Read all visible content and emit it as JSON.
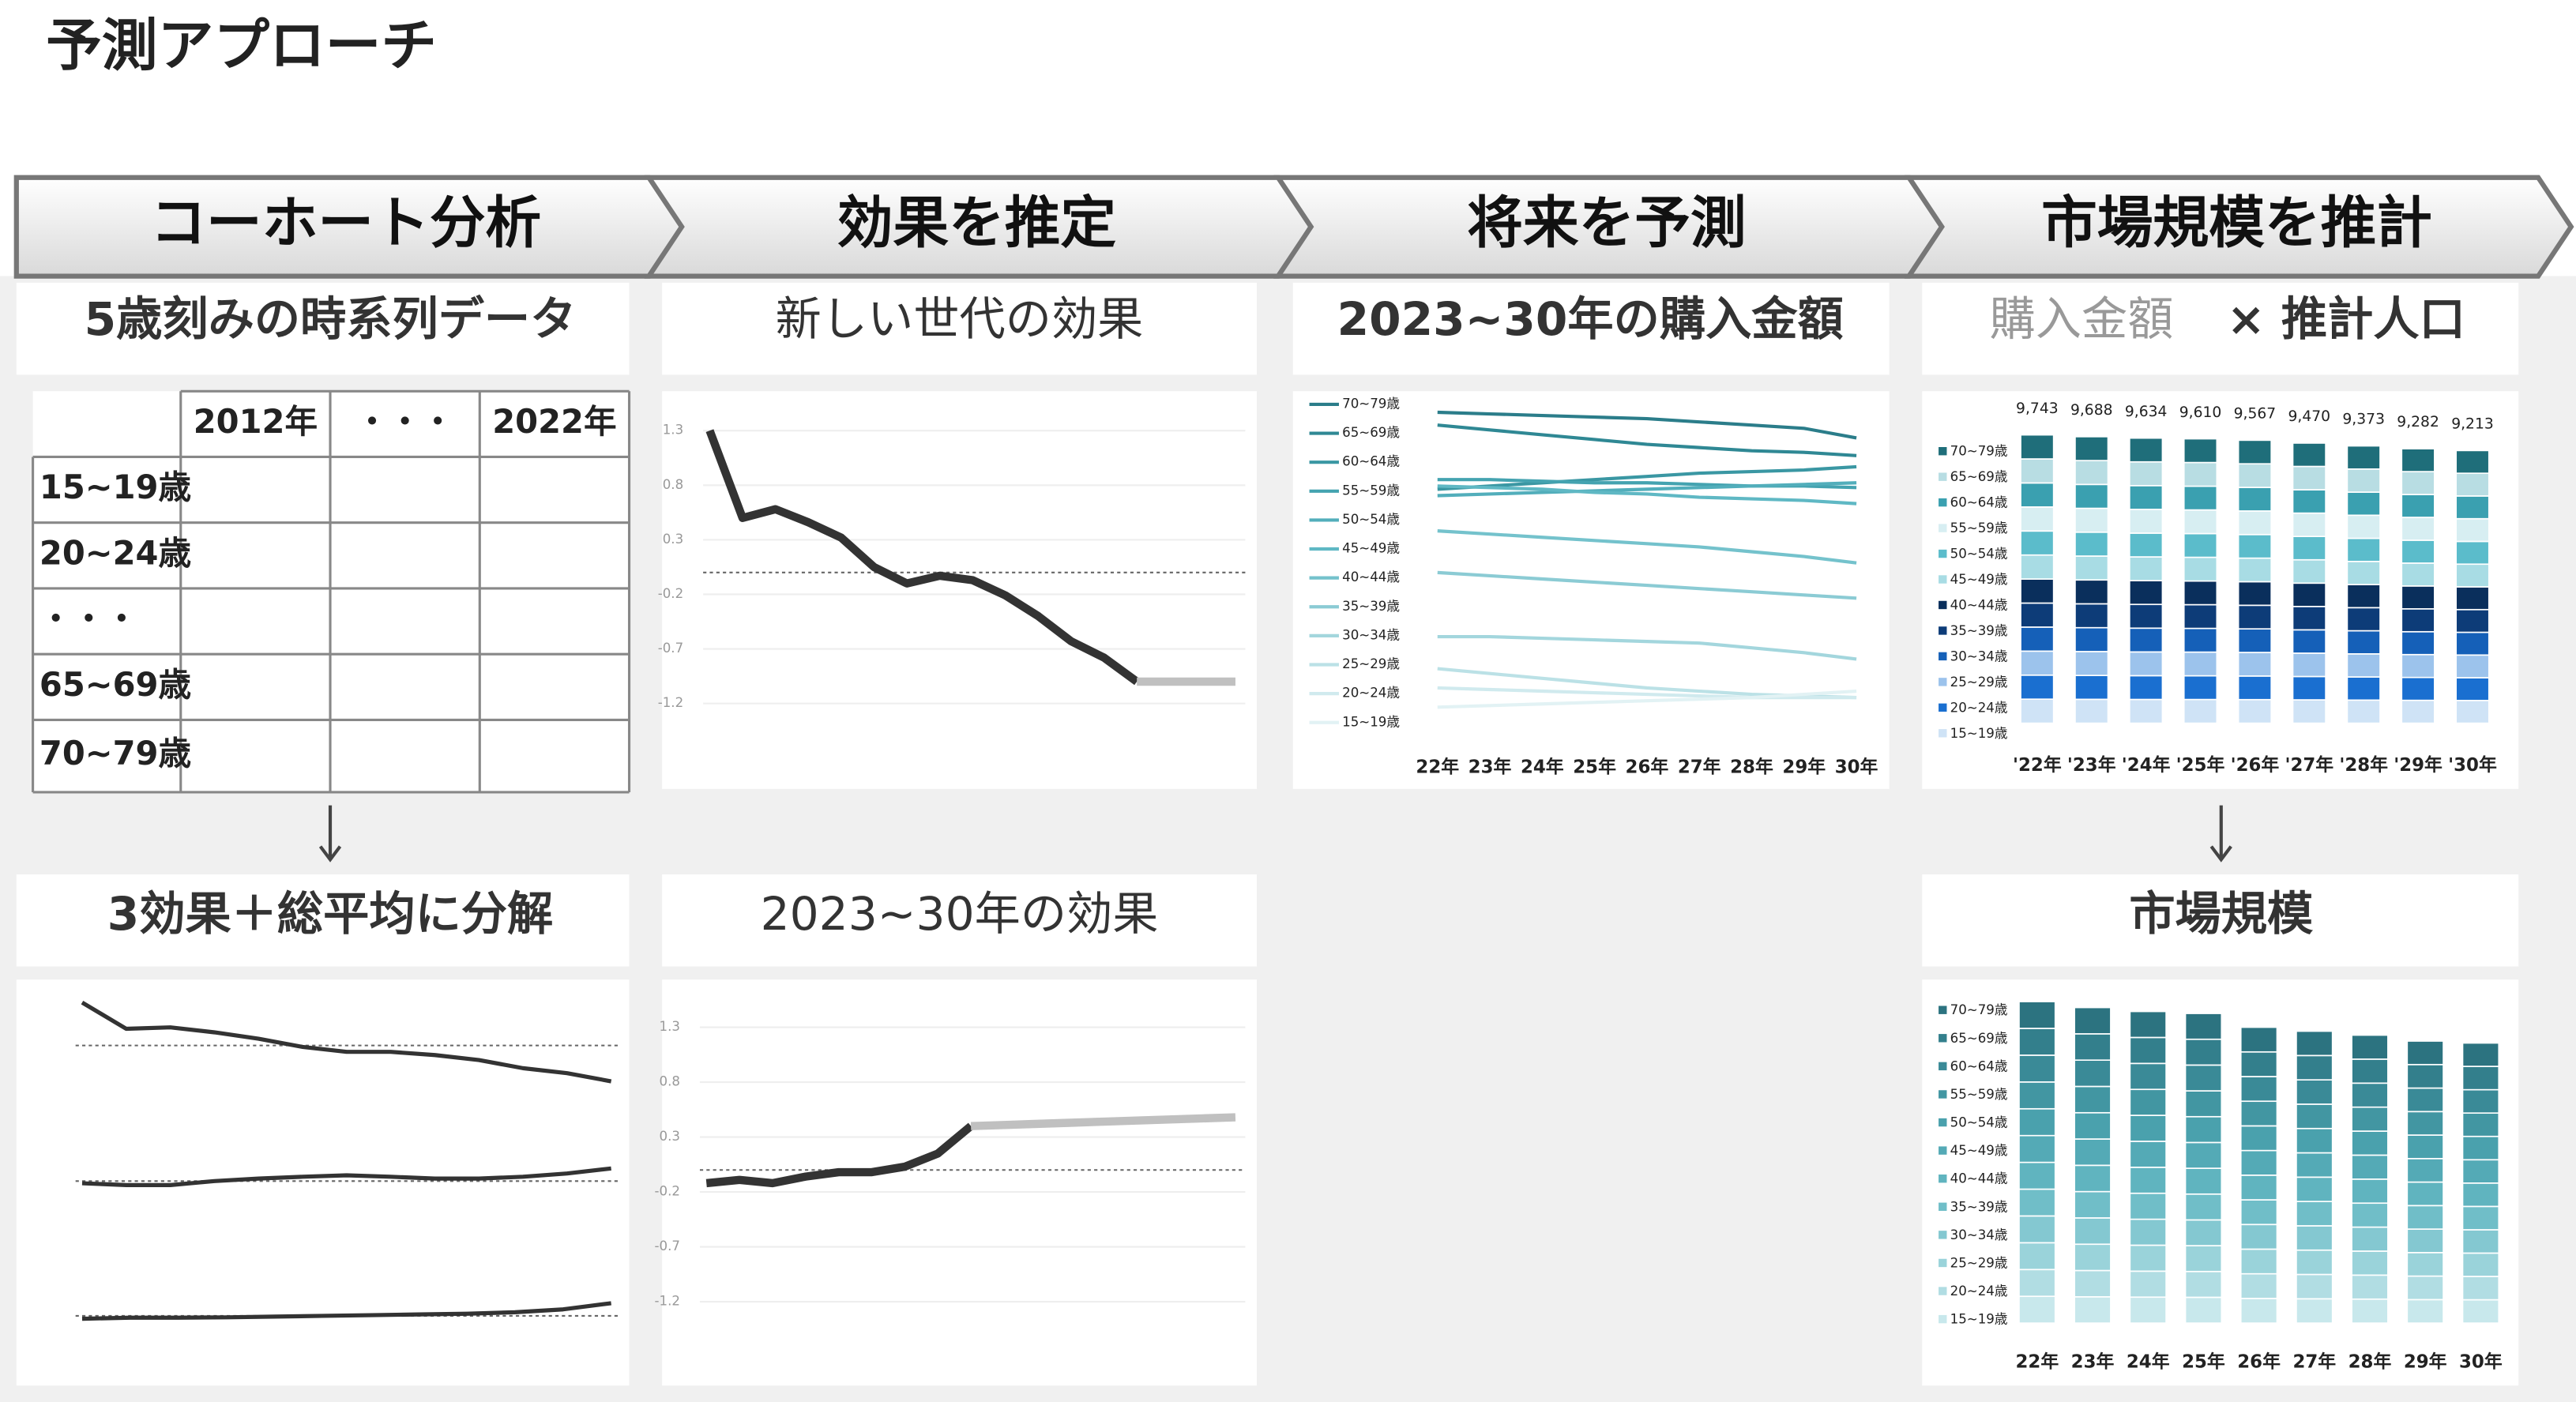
{
  "header": {
    "title": "予測アプローチ"
  },
  "steps": [
    "コーホート分析",
    "効果を推定",
    "将来を予測",
    "市場規模を推計"
  ],
  "subtitles": {
    "time_series": "5歳刻みの時系列データ",
    "new_generation": "新しい世代の効果",
    "purchase_amount": "2023~30年の購入金額",
    "market_calc_a": "購入金額",
    "market_calc_b": "× 推計人口",
    "decomposition": "3効果＋総平均に分解",
    "future_effect": "2023~30年の効果",
    "market_size": "市場規模"
  },
  "table": {
    "header": [
      "2012年",
      "・・・",
      "2022年"
    ],
    "rows": [
      "15~19歳",
      "20~24歳",
      "・・・",
      "65~69歳",
      "70~79歳"
    ]
  },
  "chart_data": [
    {
      "type": "line",
      "ylim": [
        -1.2,
        1.3
      ],
      "yticks": [
        1.3,
        0.8,
        0.3,
        -0.2,
        -0.7,
        -1.2
      ],
      "grid": true,
      "reference_line": 0,
      "series": [
        {
          "color": "#333333",
          "values": [
            1.3,
            0.5,
            0.58,
            0.46,
            0.32,
            0.05,
            -0.1,
            -0.03,
            -0.07,
            -0.21,
            -0.4,
            -0.63,
            -0.78,
            -1.0,
            null,
            null,
            null
          ]
        },
        {
          "color": "#c0c0c0",
          "values": [
            null,
            null,
            null,
            null,
            null,
            null,
            null,
            null,
            null,
            null,
            null,
            null,
            null,
            -1.0,
            -1.0,
            -1.0,
            -1.0
          ]
        }
      ]
    },
    {
      "type": "multi-line",
      "ylim": [
        0,
        100
      ],
      "categories": [
        "22年",
        "23年",
        "24年",
        "25年",
        "26年",
        "27年",
        "28年",
        "29年",
        "30年"
      ],
      "series": [
        {
          "name": "70~79歳",
          "color": "#2b7d8a",
          "values": [
            97,
            96.5,
            96,
            95.5,
            95,
            94,
            93,
            92,
            89
          ]
        },
        {
          "name": "65~69歳",
          "color": "#2f8894",
          "values": [
            93,
            91.5,
            90,
            88.5,
            87,
            86,
            85,
            84.5,
            83.5
          ]
        },
        {
          "name": "60~64歳",
          "color": "#3a97a3",
          "values": [
            73,
            74,
            75,
            76,
            77,
            78,
            78.5,
            79,
            80
          ]
        },
        {
          "name": "55~59歳",
          "color": "#44a3b0",
          "values": [
            76,
            76,
            75.5,
            75,
            75,
            74.5,
            74,
            74,
            73.5
          ]
        },
        {
          "name": "50~54歳",
          "color": "#52aebb",
          "values": [
            71,
            71.5,
            72,
            72.5,
            73,
            73.5,
            74,
            74.5,
            75
          ]
        },
        {
          "name": "45~49歳",
          "color": "#5fb8c4",
          "values": [
            74,
            73.5,
            73,
            72,
            71.5,
            70.5,
            70,
            69.5,
            68.5
          ]
        },
        {
          "name": "40~44歳",
          "color": "#74c2cc",
          "values": [
            60,
            59,
            58,
            57,
            56,
            55,
            53.5,
            52,
            50
          ]
        },
        {
          "name": "35~39歳",
          "color": "#8bcbd4",
          "values": [
            47,
            46,
            45,
            44,
            43,
            42,
            41,
            40,
            39
          ]
        },
        {
          "name": "30~34歳",
          "color": "#a3d6dd",
          "values": [
            27,
            27,
            26.5,
            26,
            25.5,
            25,
            23.5,
            22,
            20
          ]
        },
        {
          "name": "25~29歳",
          "color": "#bbe1e6",
          "values": [
            17,
            15.5,
            14,
            12.5,
            11,
            10,
            9,
            8.5,
            8
          ]
        },
        {
          "name": "20~24歳",
          "color": "#d0eaee",
          "values": [
            11,
            10.5,
            10,
            9.5,
            9,
            8.5,
            8,
            8,
            8
          ]
        },
        {
          "name": "15~19歳",
          "color": "#e2f2f4",
          "values": [
            5,
            5.5,
            6,
            6.5,
            7,
            7.5,
            8,
            9,
            10
          ]
        }
      ]
    },
    {
      "type": "stacked-bar",
      "ylim": [
        0,
        10000
      ],
      "categories": [
        "'22年",
        "'23年",
        "'24年",
        "'25年",
        "'26年",
        "'27年",
        "'28年",
        "'29年",
        "'30年"
      ],
      "totals": {
        "values": [
          9743,
          9688,
          9634,
          9610,
          9567,
          9470,
          9373,
          9282,
          9213
        ],
        "value_labels": [
          "9,743",
          "9,688",
          "9,634",
          "9,610",
          "9,567",
          "9,470",
          "9,373",
          "9,282",
          "9,213"
        ]
      },
      "series": [
        {
          "name": "70~79歳",
          "color": "#1f6e7a",
          "values": [
            812,
            807,
            803,
            801,
            797,
            789,
            781,
            773,
            768
          ]
        },
        {
          "name": "65~69歳",
          "color": "#b8dde3",
          "values": [
            812,
            807,
            803,
            801,
            797,
            789,
            781,
            773,
            768
          ]
        },
        {
          "name": "60~64歳",
          "color": "#3aa0b0",
          "values": [
            812,
            807,
            803,
            801,
            797,
            789,
            781,
            773,
            768
          ]
        },
        {
          "name": "55~59歳",
          "color": "#d7eef2",
          "values": [
            812,
            807,
            803,
            801,
            797,
            789,
            781,
            773,
            768
          ]
        },
        {
          "name": "50~54歳",
          "color": "#5bbccb",
          "values": [
            812,
            807,
            803,
            801,
            797,
            789,
            781,
            773,
            768
          ]
        },
        {
          "name": "45~49歳",
          "color": "#a8dce4",
          "values": [
            812,
            807,
            803,
            801,
            797,
            789,
            781,
            773,
            768
          ]
        },
        {
          "name": "40~44歳",
          "color": "#0a2f5c",
          "values": [
            812,
            807,
            803,
            801,
            797,
            789,
            781,
            773,
            768
          ]
        },
        {
          "name": "35~39歳",
          "color": "#0d3c78",
          "values": [
            812,
            807,
            803,
            801,
            797,
            789,
            781,
            773,
            768
          ]
        },
        {
          "name": "30~34歳",
          "color": "#1560b8",
          "values": [
            812,
            807,
            803,
            801,
            797,
            789,
            781,
            773,
            768
          ]
        },
        {
          "name": "25~29歳",
          "color": "#9cc3ec",
          "values": [
            812,
            807,
            803,
            801,
            797,
            789,
            781,
            773,
            768
          ]
        },
        {
          "name": "20~24歳",
          "color": "#1a6fd0",
          "values": [
            812,
            807,
            803,
            801,
            797,
            789,
            781,
            773,
            768
          ]
        },
        {
          "name": "15~19歳",
          "color": "#cfe3f6",
          "values": [
            812,
            807,
            803,
            801,
            797,
            789,
            781,
            773,
            768
          ]
        }
      ]
    },
    {
      "type": "stacked-bar",
      "ylim": [
        0,
        200
      ],
      "categories": [
        "22年",
        "23年",
        "24年",
        "25年",
        "26年",
        "27年",
        "28年",
        "29年",
        "30年"
      ],
      "series": [
        {
          "name": "70~79歳",
          "color": "#2c7380",
          "values": [
            16.3,
            16.0,
            15.8,
            15.7,
            15.0,
            14.8,
            14.6,
            14.3,
            14.2
          ]
        },
        {
          "name": "65~69歳",
          "color": "#337f8c",
          "values": [
            16.3,
            16.0,
            15.8,
            15.7,
            15.0,
            14.8,
            14.6,
            14.3,
            14.2
          ]
        },
        {
          "name": "60~64歳",
          "color": "#3a8a97",
          "values": [
            16.3,
            16.0,
            15.8,
            15.7,
            15.0,
            14.8,
            14.6,
            14.3,
            14.2
          ]
        },
        {
          "name": "55~59歳",
          "color": "#4296a2",
          "values": [
            16.3,
            16.0,
            15.8,
            15.7,
            15.0,
            14.8,
            14.6,
            14.3,
            14.2
          ]
        },
        {
          "name": "50~54歳",
          "color": "#4aa1ad",
          "values": [
            16.3,
            16.0,
            15.8,
            15.7,
            15.0,
            14.8,
            14.6,
            14.3,
            14.2
          ]
        },
        {
          "name": "45~49歳",
          "color": "#54aab6",
          "values": [
            16.3,
            16.0,
            15.8,
            15.7,
            15.0,
            14.8,
            14.6,
            14.3,
            14.2
          ]
        },
        {
          "name": "40~44歳",
          "color": "#60b4bf",
          "values": [
            16.3,
            16.0,
            15.8,
            15.7,
            15.0,
            14.8,
            14.6,
            14.3,
            14.2
          ]
        },
        {
          "name": "35~39歳",
          "color": "#70bec8",
          "values": [
            16.3,
            16.0,
            15.8,
            15.7,
            15.0,
            14.8,
            14.6,
            14.3,
            14.2
          ]
        },
        {
          "name": "30~34歳",
          "color": "#84c8d1",
          "values": [
            16.3,
            16.0,
            15.8,
            15.7,
            15.0,
            14.8,
            14.6,
            14.3,
            14.2
          ]
        },
        {
          "name": "25~29歳",
          "color": "#9ad3da",
          "values": [
            16.3,
            16.0,
            15.8,
            15.7,
            15.0,
            14.8,
            14.6,
            14.3,
            14.2
          ]
        },
        {
          "name": "20~24歳",
          "color": "#b1dde3",
          "values": [
            16.3,
            16.0,
            15.8,
            15.7,
            15.0,
            14.8,
            14.6,
            14.3,
            14.2
          ]
        },
        {
          "name": "15~19歳",
          "color": "#c8e8ec",
          "values": [
            16.3,
            16.0,
            15.8,
            15.7,
            15.0,
            14.8,
            14.6,
            14.3,
            14.2
          ]
        }
      ]
    },
    {
      "type": "line",
      "ylim": [
        -1.2,
        1.3
      ],
      "reference_line": 0,
      "color": "#333333",
      "values": [
        1.21,
        0.47,
        0.51,
        0.37,
        0.19,
        -0.04,
        -0.18,
        -0.18,
        -0.27,
        -0.41,
        -0.64,
        -0.78,
        -1.01
      ]
    },
    {
      "type": "line",
      "ylim": [
        -1.2,
        1.3
      ],
      "reference_line": 0,
      "color": "#333333",
      "values": [
        -0.06,
        -0.11,
        -0.11,
        0.0,
        0.07,
        0.12,
        0.16,
        0.12,
        0.07,
        0.07,
        0.12,
        0.21,
        0.35
      ]
    },
    {
      "type": "line",
      "ylim": [
        -1.2,
        1.3
      ],
      "reference_line": 0,
      "color": "#333333",
      "values": [
        -0.08,
        -0.05,
        -0.05,
        -0.04,
        -0.02,
        0.0,
        0.02,
        0.04,
        0.06,
        0.1,
        0.18,
        0.35
      ]
    },
    {
      "type": "line",
      "ylim": [
        -1.2,
        1.3
      ],
      "yticks": [
        1.3,
        0.8,
        0.3,
        -0.2,
        -0.7,
        -1.2
      ],
      "grid": true,
      "reference_line": 0,
      "series": [
        {
          "color": "#333333",
          "values": [
            -0.12,
            -0.09,
            -0.12,
            -0.06,
            -0.02,
            -0.02,
            0.03,
            0.15,
            0.4,
            null,
            null,
            null,
            null,
            null,
            null,
            null,
            null
          ]
        },
        {
          "color": "#c0c0c0",
          "values": [
            null,
            null,
            null,
            null,
            null,
            null,
            null,
            null,
            0.4,
            0.41,
            0.42,
            0.43,
            0.44,
            0.45,
            0.46,
            0.47,
            0.48
          ]
        }
      ]
    }
  ]
}
